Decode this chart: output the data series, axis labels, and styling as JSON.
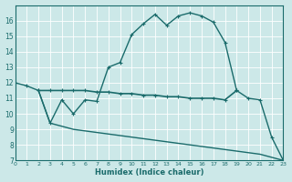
{
  "xlabel": "Humidex (Indice chaleur)",
  "bg_color": "#cce8e8",
  "grid_color": "#ffffff",
  "line_color": "#1a6b6b",
  "ylim": [
    7,
    17
  ],
  "xlim": [
    0,
    23
  ],
  "yticks": [
    7,
    8,
    9,
    10,
    11,
    12,
    13,
    14,
    15,
    16
  ],
  "xticks": [
    0,
    1,
    2,
    3,
    4,
    5,
    6,
    7,
    8,
    9,
    10,
    11,
    12,
    13,
    14,
    15,
    16,
    17,
    18,
    19,
    20,
    21,
    22,
    23
  ],
  "curve1_x": [
    0,
    1,
    2,
    3,
    4,
    5,
    6,
    7,
    8,
    9,
    10,
    11,
    12,
    13,
    14,
    15,
    16,
    17,
    18,
    19,
    20,
    21,
    22,
    23
  ],
  "curve1_y": [
    12.0,
    11.8,
    11.5,
    9.4,
    10.9,
    10.0,
    10.9,
    10.8,
    13.0,
    13.3,
    15.1,
    15.8,
    16.4,
    15.7,
    16.3,
    16.5,
    16.3,
    15.9,
    14.6,
    11.5,
    11.0,
    10.9,
    8.5,
    7.0
  ],
  "curve2_x": [
    2,
    3,
    4,
    5,
    6,
    7,
    8,
    9,
    10,
    11,
    12,
    13,
    14,
    15,
    16,
    17,
    18,
    19
  ],
  "curve2_y": [
    11.5,
    11.5,
    11.5,
    11.5,
    11.5,
    11.4,
    11.4,
    11.3,
    11.3,
    11.2,
    11.2,
    11.1,
    11.1,
    11.0,
    11.0,
    11.0,
    10.9,
    11.5
  ],
  "curve3_x": [
    2,
    3,
    4,
    5,
    6,
    7,
    8,
    9,
    10,
    11,
    12,
    13,
    14,
    15,
    16,
    17,
    18,
    19,
    20,
    21,
    22,
    23
  ],
  "curve3_y": [
    11.5,
    9.4,
    9.2,
    9.0,
    8.9,
    8.8,
    8.7,
    8.6,
    8.5,
    8.4,
    8.3,
    8.2,
    8.1,
    8.0,
    7.9,
    7.8,
    7.7,
    7.6,
    7.5,
    7.4,
    7.2,
    7.0
  ]
}
